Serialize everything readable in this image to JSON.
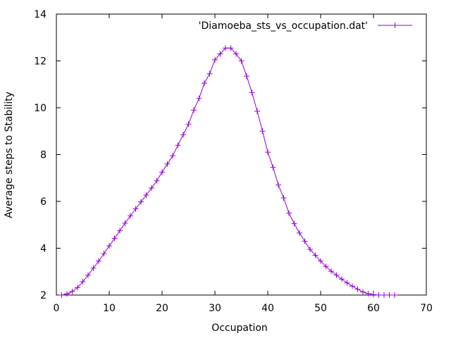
{
  "chart_data": {
    "type": "line",
    "title": "",
    "xlabel": "Occupation",
    "ylabel": "Average steps to Stability",
    "xlim": [
      0,
      70
    ],
    "ylim": [
      2,
      14
    ],
    "x_ticks": [
      0,
      10,
      20,
      30,
      40,
      50,
      60,
      70
    ],
    "y_ticks": [
      2,
      4,
      6,
      8,
      10,
      12,
      14
    ],
    "x_tick_labels": [
      "0",
      "10",
      "20",
      "30",
      "40",
      "50",
      "60",
      "70"
    ],
    "y_tick_labels": [
      "2",
      "4",
      "6",
      "8",
      "10",
      "12",
      "14"
    ],
    "grid": false,
    "legend": {
      "placement": "top-right"
    },
    "series": [
      {
        "name": "'Diamoeba_sts_vs_occupation.dat'",
        "color": "#9400d3",
        "marker": "plus",
        "x": [
          1,
          2,
          3,
          4,
          5,
          6,
          7,
          8,
          9,
          10,
          11,
          12,
          13,
          14,
          15,
          16,
          17,
          18,
          19,
          20,
          21,
          22,
          23,
          24,
          25,
          26,
          27,
          28,
          29,
          30,
          31,
          32,
          33,
          34,
          35,
          36,
          37,
          38,
          39,
          40,
          41,
          42,
          43,
          44,
          45,
          46,
          47,
          48,
          49,
          50,
          51,
          52,
          53,
          54,
          55,
          56,
          57,
          58,
          59,
          60,
          61,
          62,
          63,
          64
        ],
        "y": [
          2.0,
          2.05,
          2.15,
          2.32,
          2.57,
          2.85,
          3.15,
          3.45,
          3.77,
          4.1,
          4.42,
          4.75,
          5.07,
          5.38,
          5.68,
          5.98,
          6.27,
          6.57,
          6.88,
          7.25,
          7.6,
          7.95,
          8.4,
          8.85,
          9.3,
          9.9,
          10.4,
          11.05,
          11.45,
          12.05,
          12.3,
          12.55,
          12.55,
          12.3,
          12.0,
          11.35,
          10.65,
          9.85,
          9.0,
          8.1,
          7.45,
          6.7,
          6.15,
          5.5,
          5.05,
          4.65,
          4.3,
          3.95,
          3.7,
          3.45,
          3.22,
          3.02,
          2.85,
          2.68,
          2.52,
          2.38,
          2.25,
          2.13,
          2.06,
          2.02,
          2.0,
          2.0,
          2.0,
          2.0
        ]
      }
    ]
  }
}
